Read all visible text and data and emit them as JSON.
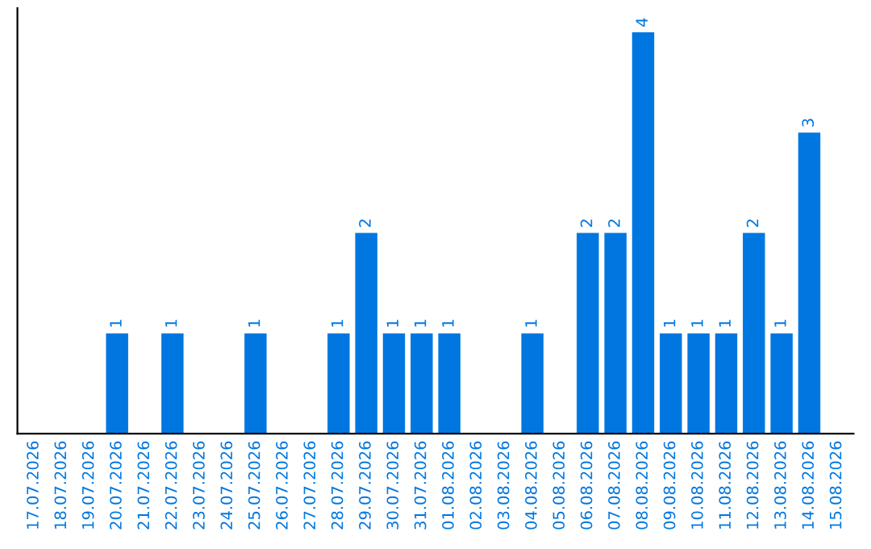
{
  "chart_data": {
    "type": "bar",
    "categories": [
      "17.07.2026",
      "18.07.2026",
      "19.07.2026",
      "20.07.2026",
      "21.07.2026",
      "22.07.2026",
      "23.07.2026",
      "24.07.2026",
      "25.07.2026",
      "26.07.2026",
      "27.07.2026",
      "28.07.2026",
      "29.07.2026",
      "30.07.2026",
      "31.07.2026",
      "01.08.2026",
      "02.08.2026",
      "03.08.2026",
      "04.08.2026",
      "05.08.2026",
      "06.08.2026",
      "07.08.2026",
      "08.08.2026",
      "09.08.2026",
      "10.08.2026",
      "11.08.2026",
      "12.08.2026",
      "13.08.2026",
      "14.08.2026",
      "15.08.2026"
    ],
    "values": [
      null,
      null,
      null,
      1,
      null,
      1,
      null,
      null,
      1,
      null,
      null,
      1,
      2,
      1,
      1,
      1,
      null,
      null,
      1,
      null,
      2,
      2,
      4,
      1,
      1,
      1,
      2,
      1,
      3,
      null
    ],
    "color": "#0077e0",
    "data_labels": true,
    "tick_labels": "x",
    "grid": false,
    "legend": false
  }
}
